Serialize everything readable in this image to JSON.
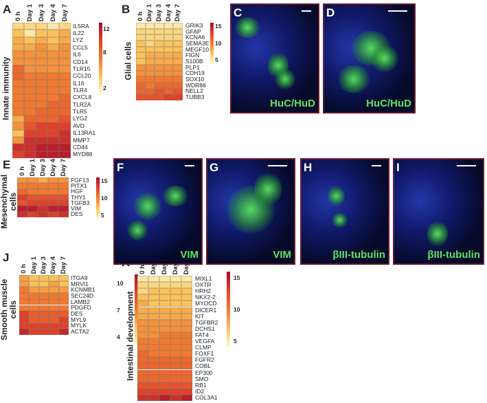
{
  "chart_data": [
    {
      "type": "heatmap",
      "panel": "A",
      "ylabel": "Innate immunity",
      "columns": [
        "0 h",
        "Day 1",
        "Day 3",
        "Day 4",
        "Day 7"
      ],
      "rows": [
        "IL5RA",
        "IL22",
        "LYZ",
        "CCL5",
        "IL6",
        "CD14",
        "TLR15",
        "CCL20",
        "IL16",
        "TLR4",
        "CXCL8",
        "TLR2A",
        "TLR5",
        "LYG2",
        "AVD",
        "IL13RA1",
        "MMP7",
        "CD44",
        "MYD88"
      ],
      "values": [
        [
          3,
          3,
          3,
          2,
          3
        ],
        [
          4,
          2,
          4,
          4,
          5
        ],
        [
          5,
          4,
          5,
          4,
          5
        ],
        [
          5,
          5,
          6,
          5,
          6
        ],
        [
          6,
          6,
          6,
          6,
          6
        ],
        [
          6,
          6,
          6,
          6,
          6
        ],
        [
          8,
          6,
          6,
          6,
          6
        ],
        [
          8,
          7,
          7,
          7,
          7
        ],
        [
          7,
          7,
          7,
          7,
          7
        ],
        [
          7,
          7,
          7,
          7,
          7
        ],
        [
          7,
          7,
          7,
          7,
          8
        ],
        [
          7,
          7,
          7,
          8,
          8
        ],
        [
          7,
          7,
          8,
          8,
          8
        ],
        [
          5,
          8,
          8,
          8,
          9
        ],
        [
          6,
          9,
          10,
          10,
          10
        ],
        [
          4,
          10,
          10,
          10,
          11
        ],
        [
          6,
          11,
          11,
          11,
          11
        ],
        [
          11,
          11,
          12,
          12,
          12
        ],
        [
          10,
          11,
          12,
          12,
          12
        ]
      ],
      "zlim": [
        1,
        13
      ],
      "zticks": [
        12,
        8,
        2
      ],
      "colors": [
        "#fffbd0",
        "#fbc35a",
        "#f27a30",
        "#e0402a",
        "#a50f2c"
      ]
    },
    {
      "type": "heatmap",
      "panel": "B",
      "ylabel": "Glial cells",
      "columns": [
        "0 h",
        "Day 1",
        "Day 3",
        "Day 4",
        "Day 7"
      ],
      "rows": [
        "GRIK3",
        "GFAP",
        "KCNA6",
        "SEMA3E",
        "MEGF10",
        "FIGN",
        "S100B",
        "PLP1",
        "CDH19",
        "SOX10",
        "WDR86",
        "NELL2",
        "TUBB3"
      ],
      "values": [
        [
          5,
          5,
          5,
          5,
          5
        ],
        [
          6,
          6,
          6,
          6,
          6
        ],
        [
          6,
          6,
          6,
          6,
          6
        ],
        [
          7,
          6,
          7,
          7,
          7
        ],
        [
          7,
          7,
          7,
          7,
          7
        ],
        [
          7,
          8,
          8,
          8,
          8
        ],
        [
          7,
          8,
          8,
          8,
          8
        ],
        [
          9,
          9,
          9,
          9,
          9
        ],
        [
          9,
          9,
          9,
          9,
          9
        ],
        [
          10,
          10,
          10,
          10,
          10
        ],
        [
          11,
          10,
          11,
          11,
          11
        ],
        [
          11,
          11,
          12,
          11,
          12
        ],
        [
          12,
          12,
          12,
          13,
          13
        ]
      ],
      "zlim": [
        4,
        16
      ],
      "zticks": [
        15,
        10,
        5
      ],
      "colors": [
        "#fffbd0",
        "#fbc35a",
        "#f27a30",
        "#e0402a",
        "#a50f2c"
      ]
    },
    {
      "type": "heatmap",
      "panel": "E",
      "ylabel": "Mesenchymal cells",
      "columns": [
        "0 h",
        "Day 1",
        "Day 3",
        "Day 4",
        "Day 7"
      ],
      "rows": [
        "FGF13",
        "PITX1",
        "HGF",
        "THY1",
        "TGFB3",
        "VIM",
        "DES"
      ],
      "values": [
        [
          9,
          9,
          8,
          9,
          9
        ],
        [
          10,
          10,
          10,
          10,
          10
        ],
        [
          11,
          10,
          10,
          10,
          10
        ],
        [
          13,
          12,
          12,
          12,
          12
        ],
        [
          12,
          13,
          13,
          13,
          13
        ],
        [
          15,
          15,
          14,
          15,
          15
        ],
        [
          14,
          13,
          14,
          13,
          14
        ]
      ],
      "zlim": [
        4,
        16
      ],
      "zticks": [
        15,
        10,
        5
      ],
      "colors": [
        "#fffbd0",
        "#fbc35a",
        "#f27a30",
        "#e0402a",
        "#a50f2c"
      ]
    },
    {
      "type": "heatmap",
      "panel": "J",
      "ylabel": "Smooth muscle cells",
      "columns": [
        "0 h",
        "Day 1",
        "Day 3",
        "Day 4",
        "Day 7"
      ],
      "rows": [
        "ITGA9",
        "MRVI1",
        "KCNMB1",
        "SEC24D",
        "LAMB2",
        "PDGFD",
        "DES",
        "MYL9",
        "MYLK",
        "ACTA2"
      ],
      "values": [
        [
          6,
          5,
          5,
          5,
          5
        ],
        [
          6,
          5,
          5,
          6,
          5
        ],
        [
          7,
          6,
          6,
          6,
          6
        ],
        [
          7,
          7,
          7,
          7,
          7
        ],
        [
          7,
          7,
          7,
          7,
          7
        ],
        [
          7,
          7,
          7,
          7,
          7
        ],
        [
          9,
          8,
          8,
          8,
          8
        ],
        [
          9,
          8,
          8,
          8,
          9
        ],
        [
          9,
          9,
          9,
          9,
          9
        ],
        [
          10,
          9,
          9,
          9,
          10
        ]
      ],
      "zlim": [
        3,
        11
      ],
      "zticks": [
        10,
        7,
        4
      ],
      "colors": [
        "#fffbd0",
        "#fbc35a",
        "#f27a30",
        "#e0402a",
        "#a50f2c"
      ]
    },
    {
      "type": "heatmap",
      "panel": "K",
      "ylabel": "Intestinal development",
      "columns": [
        "0 h",
        "Day 1",
        "Day 3",
        "Day 4",
        "Day 7"
      ],
      "rows": [
        "MIXL1",
        "OXTR",
        "HRH2",
        "NKX2-2",
        "MYOCD",
        "DICER1",
        "KIT",
        "TGFBR2",
        "DCHS1",
        "FAT4",
        "VEGFA",
        "CLMP",
        "FOXF1",
        "FGFR2",
        "COBL",
        "EP300",
        "SMO",
        "RB1",
        "ID2",
        "COL3A1"
      ],
      "values": [
        [
          5,
          5,
          5,
          5,
          5
        ],
        [
          6,
          6,
          6,
          6,
          6
        ],
        [
          6,
          7,
          7,
          7,
          7
        ],
        [
          7,
          7,
          7,
          7,
          7
        ],
        [
          8,
          7,
          7,
          7,
          7
        ],
        [
          8,
          8,
          8,
          8,
          8
        ],
        [
          8,
          8,
          8,
          8,
          8
        ],
        [
          9,
          9,
          9,
          9,
          9
        ],
        [
          9,
          9,
          9,
          9,
          9
        ],
        [
          9,
          9,
          10,
          10,
          10
        ],
        [
          10,
          10,
          10,
          10,
          10
        ],
        [
          10,
          10,
          10,
          10,
          10
        ],
        [
          11,
          10,
          10,
          10,
          10
        ],
        [
          11,
          11,
          11,
          11,
          11
        ],
        [
          11,
          11,
          11,
          11,
          11
        ],
        [
          11,
          11,
          11,
          11,
          11
        ],
        [
          11,
          11,
          11,
          11,
          11
        ],
        [
          12,
          12,
          12,
          12,
          12
        ],
        [
          13,
          13,
          13,
          13,
          13
        ],
        [
          14,
          14,
          15,
          14,
          15
        ]
      ],
      "zlim": [
        4,
        16
      ],
      "zticks": [
        15,
        10,
        5
      ],
      "colors": [
        "#fffbd0",
        "#fbc35a",
        "#f27a30",
        "#e0402a",
        "#a50f2c"
      ]
    }
  ],
  "images": [
    {
      "panel": "C",
      "caption": "HuC/HuD"
    },
    {
      "panel": "D",
      "caption": "HuC/HuD"
    },
    {
      "panel": "F",
      "caption": "VIM"
    },
    {
      "panel": "G",
      "caption": "VIM"
    },
    {
      "panel": "H",
      "caption": "βIII-tubulin"
    },
    {
      "panel": "I",
      "caption": "βIII-tubulin"
    }
  ]
}
